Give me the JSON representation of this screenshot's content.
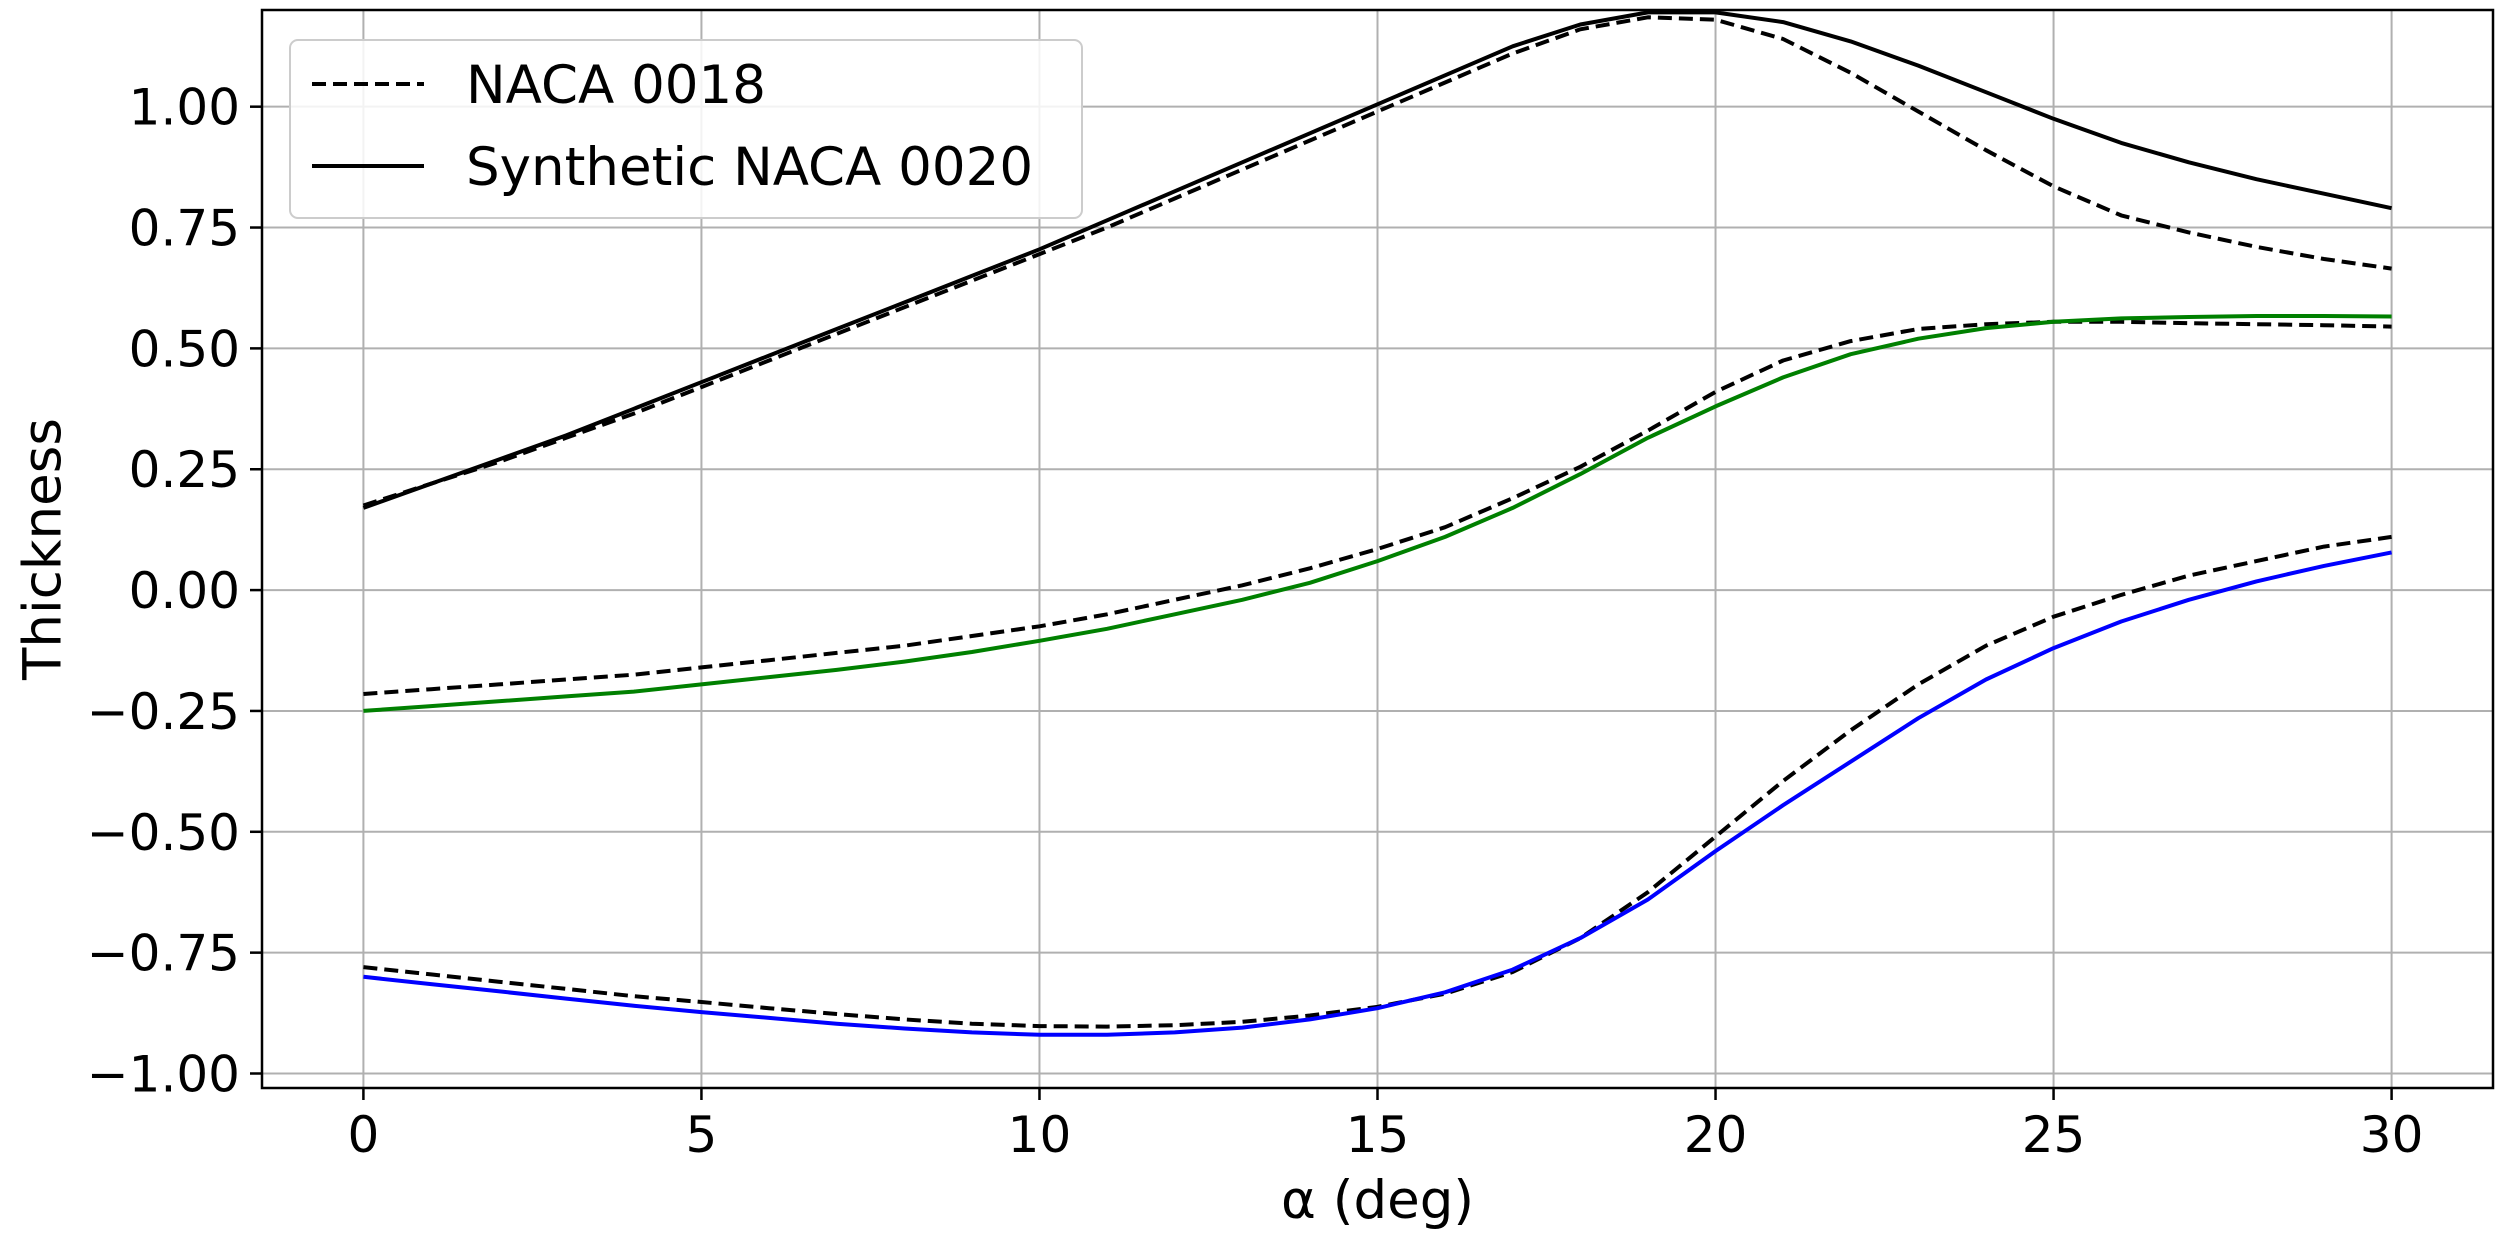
{
  "chart_data": {
    "type": "line",
    "title": "",
    "xlabel": "α (deg)",
    "ylabel": "Thickness",
    "xlim": [
      -1.5,
      31.5
    ],
    "ylim": [
      -1.03,
      1.2
    ],
    "xticks": [
      0,
      5,
      10,
      15,
      20,
      25,
      30
    ],
    "xtick_labels": [
      "0",
      "5",
      "10",
      "15",
      "20",
      "25",
      "30"
    ],
    "yticks": [
      -1.0,
      -0.75,
      -0.5,
      -0.25,
      0.0,
      0.25,
      0.5,
      0.75,
      1.0
    ],
    "ytick_labels": [
      "−1.00",
      "−0.75",
      "−0.50",
      "−0.25",
      "0.00",
      "0.25",
      "0.50",
      "0.75",
      "1.00"
    ],
    "grid": true,
    "legend": {
      "position": "top-left",
      "entries": [
        {
          "label": "NACA 0018",
          "style": "dashed",
          "color": "#000000"
        },
        {
          "label": "Synthetic NACA 0020",
          "style": "solid",
          "color": "#000000"
        }
      ]
    },
    "x": [
      0,
      1,
      2,
      3,
      4,
      5,
      6,
      7,
      8,
      9,
      10,
      11,
      12,
      13,
      14,
      15,
      16,
      17,
      18,
      19,
      20,
      21,
      22,
      23,
      24,
      25,
      26,
      27,
      28,
      29,
      30
    ],
    "series": [
      {
        "group": "NACA 0018",
        "style": "dashed",
        "color": "#000000",
        "values": [
          0.175,
          0.22,
          0.265,
          0.315,
          0.365,
          0.42,
          0.475,
          0.53,
          0.585,
          0.64,
          0.695,
          0.75,
          0.81,
          0.87,
          0.93,
          0.99,
          1.05,
          1.11,
          1.16,
          1.185,
          1.18,
          1.14,
          1.07,
          0.99,
          0.91,
          0.835,
          0.775,
          0.74,
          0.71,
          0.685,
          0.665
        ]
      },
      {
        "group": "Synthetic NACA 0020",
        "style": "solid",
        "color": "#000000",
        "values": [
          0.17,
          0.22,
          0.27,
          0.32,
          0.375,
          0.43,
          0.485,
          0.54,
          0.595,
          0.65,
          0.705,
          0.765,
          0.825,
          0.885,
          0.945,
          1.005,
          1.065,
          1.125,
          1.17,
          1.195,
          1.195,
          1.175,
          1.135,
          1.085,
          1.03,
          0.975,
          0.925,
          0.885,
          0.85,
          0.82,
          0.79
        ]
      },
      {
        "group": "NACA 0018",
        "style": "dashed",
        "color": "#000000",
        "values": [
          -0.215,
          -0.205,
          -0.195,
          -0.185,
          -0.175,
          -0.16,
          -0.145,
          -0.13,
          -0.115,
          -0.095,
          -0.075,
          -0.05,
          -0.02,
          0.01,
          0.045,
          0.085,
          0.13,
          0.19,
          0.255,
          0.33,
          0.41,
          0.475,
          0.515,
          0.54,
          0.55,
          0.555,
          0.555,
          0.552,
          0.55,
          0.548,
          0.545
        ]
      },
      {
        "group": "Synthetic NACA 0020",
        "style": "solid",
        "color": "#008000",
        "values": [
          -0.25,
          -0.24,
          -0.23,
          -0.22,
          -0.21,
          -0.195,
          -0.18,
          -0.165,
          -0.148,
          -0.128,
          -0.105,
          -0.08,
          -0.05,
          -0.02,
          0.015,
          0.06,
          0.11,
          0.17,
          0.24,
          0.315,
          0.38,
          0.44,
          0.488,
          0.52,
          0.542,
          0.555,
          0.562,
          0.565,
          0.567,
          0.567,
          0.566
        ]
      },
      {
        "group": "NACA 0018",
        "style": "dashed",
        "color": "#000000",
        "values": [
          -0.78,
          -0.795,
          -0.81,
          -0.825,
          -0.84,
          -0.852,
          -0.865,
          -0.877,
          -0.888,
          -0.897,
          -0.902,
          -0.903,
          -0.9,
          -0.893,
          -0.88,
          -0.862,
          -0.835,
          -0.79,
          -0.72,
          -0.625,
          -0.51,
          -0.395,
          -0.29,
          -0.195,
          -0.115,
          -0.055,
          -0.01,
          0.03,
          0.06,
          0.09,
          0.11
        ]
      },
      {
        "group": "Synthetic NACA 0020",
        "style": "solid",
        "color": "#0000ff",
        "values": [
          -0.8,
          -0.815,
          -0.83,
          -0.845,
          -0.86,
          -0.873,
          -0.885,
          -0.897,
          -0.907,
          -0.915,
          -0.92,
          -0.92,
          -0.915,
          -0.905,
          -0.888,
          -0.865,
          -0.832,
          -0.785,
          -0.72,
          -0.64,
          -0.54,
          -0.445,
          -0.355,
          -0.265,
          -0.185,
          -0.12,
          -0.065,
          -0.02,
          0.018,
          0.05,
          0.078
        ]
      }
    ]
  }
}
